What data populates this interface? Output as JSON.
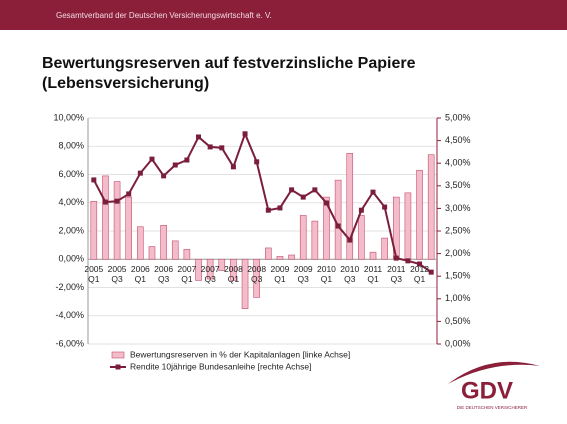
{
  "header": {
    "text": "Gesamtverband der Deutschen Versicherungswirtschaft e. V."
  },
  "chart_data": {
    "type": "bar",
    "title": "Bewertungsreserven auf festverzinsliche Papiere (Lebensversicherung)",
    "categories": [
      "2005 Q1",
      null,
      "2005 Q3",
      null,
      "2006 Q1",
      null,
      "2006 Q3",
      null,
      "2007 Q1",
      null,
      "2007 Q3",
      null,
      "2008 Q1",
      null,
      "2008 Q3",
      null,
      "2009 Q1",
      null,
      "2009 Q3",
      null,
      "2010 Q1",
      null,
      "2010 Q3",
      null,
      "2011 Q1",
      null,
      "2011 Q3",
      null,
      "2012 Q1",
      null
    ],
    "series": [
      {
        "name": "Bewertungsreserven in % der Kapitalanlagen [linke Achse]",
        "type": "bar",
        "color": "#f4bccb",
        "values": [
          4.1,
          5.9,
          5.5,
          4.4,
          2.3,
          0.9,
          2.4,
          1.3,
          0.7,
          -1.5,
          -1.4,
          -0.8,
          -1.5,
          -3.5,
          -2.7,
          0.8,
          0.2,
          0.3,
          3.1,
          2.7,
          4.4,
          5.6,
          7.5,
          3.1,
          0.5,
          1.5,
          4.4,
          4.7,
          6.3,
          7.4
        ]
      },
      {
        "name": "Rendite 10jährige Bundesanleihe [rechte Achse]",
        "type": "line",
        "axis": "y2",
        "color": "#7b1e3c",
        "values": [
          3.63,
          3.14,
          3.16,
          3.32,
          3.78,
          4.09,
          3.72,
          3.96,
          4.07,
          4.58,
          4.36,
          4.34,
          3.92,
          4.65,
          4.03,
          2.96,
          3.01,
          3.41,
          3.25,
          3.41,
          3.12,
          2.61,
          2.3,
          2.96,
          3.36,
          3.03,
          1.9,
          1.84,
          1.77,
          1.59
        ]
      }
    ],
    "ylim": [
      -6,
      10
    ],
    "yticks": [
      {
        "value": -6,
        "label": "-6,00%"
      },
      {
        "value": -4,
        "label": "-4,00%"
      },
      {
        "value": -2,
        "label": "-2,00%"
      },
      {
        "value": 0,
        "label": "0,00%"
      },
      {
        "value": 2,
        "label": "2,00%"
      },
      {
        "value": 4,
        "label": "4,00%"
      },
      {
        "value": 6,
        "label": "6,00%"
      },
      {
        "value": 8,
        "label": "8,00%"
      },
      {
        "value": 10,
        "label": "10,00%"
      }
    ],
    "y2lim": [
      0,
      5
    ],
    "y2ticks": [
      {
        "value": 0,
        "label": "0,00%"
      },
      {
        "value": 0.5,
        "label": "0,50%"
      },
      {
        "value": 1,
        "label": "1,00%"
      },
      {
        "value": 1.5,
        "label": "1,50%"
      },
      {
        "value": 2,
        "label": "2,00%"
      },
      {
        "value": 2.5,
        "label": "2,50%"
      },
      {
        "value": 3,
        "label": "3,00%"
      },
      {
        "value": 3.5,
        "label": "3,50%"
      },
      {
        "value": 4,
        "label": "4,00%"
      },
      {
        "value": 4.5,
        "label": "4,50%"
      },
      {
        "value": 5,
        "label": "5,00%"
      }
    ],
    "grid": true
  },
  "logo": {
    "text": "GDV",
    "tagline": "DIE DEUTSCHEN VERSICHERER"
  }
}
